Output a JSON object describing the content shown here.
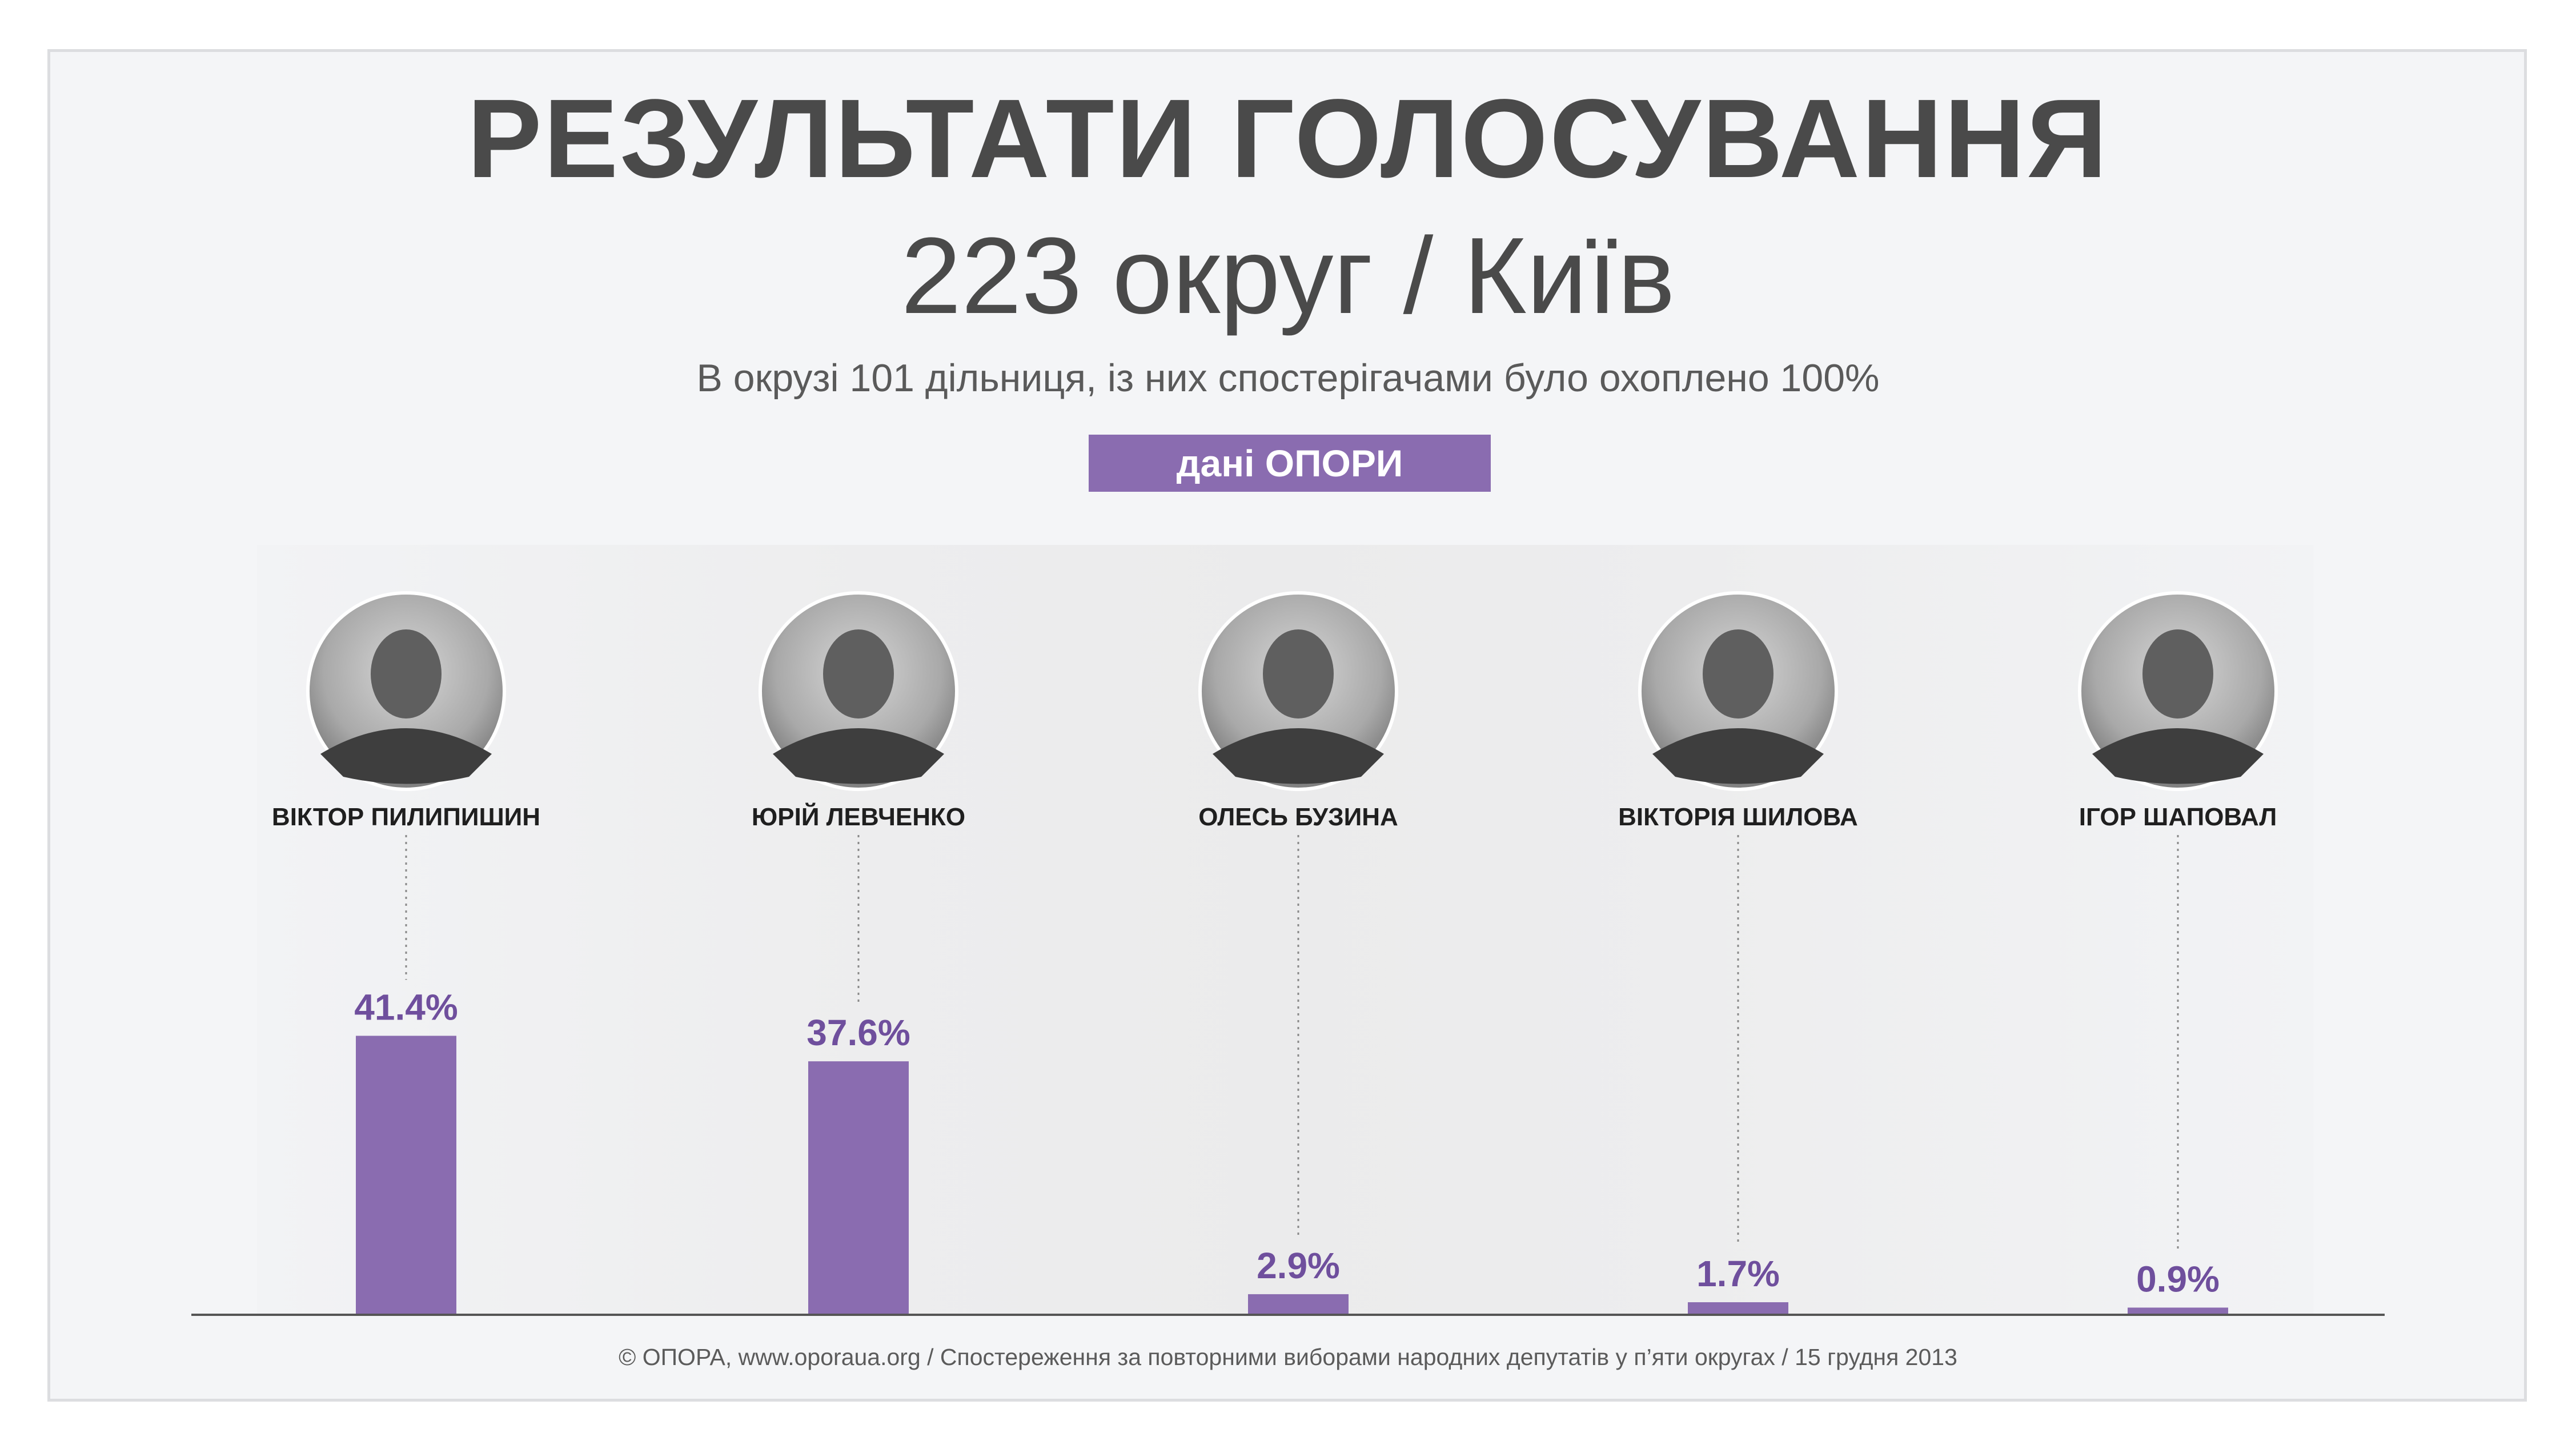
{
  "header": {
    "title": "РЕЗУЛЬТАТИ ГОЛОСУВАННЯ",
    "subtitle": "223 округ / Київ",
    "note": "В окрузі 101 дільниця, із них спостерігачами було охоплено 100%",
    "badge": "дані ОПОРИ"
  },
  "footer": {
    "text": "©  ОПОРА, www.oporaua.org / Спостереження за повторними виборами народних депутатів  у п’яти округах / 15 грудня 2013"
  },
  "colors": {
    "bar": "#8a6cb0",
    "value_label": "#6f4f9d",
    "title": "#4a4a4a",
    "axis": "#555555"
  },
  "chart_data": {
    "type": "bar",
    "title": "",
    "xlabel": "",
    "ylabel": "",
    "ylim": [
      0,
      50
    ],
    "categories": [
      "ВІКТОР ПИЛИПИШИН",
      "ЮРІЙ ЛЕВЧЕНКО",
      "ОЛЕСЬ БУЗИНА",
      "ВІКТОРІЯ ШИЛОВА",
      "ІГОР ШАПОВАЛ"
    ],
    "values": [
      41.4,
      37.6,
      2.9,
      1.7,
      0.9
    ],
    "value_labels": [
      "41.4%",
      "37.6%",
      "2.9%",
      "1.7%",
      "0.9%"
    ],
    "grid": false,
    "legend": "none"
  }
}
